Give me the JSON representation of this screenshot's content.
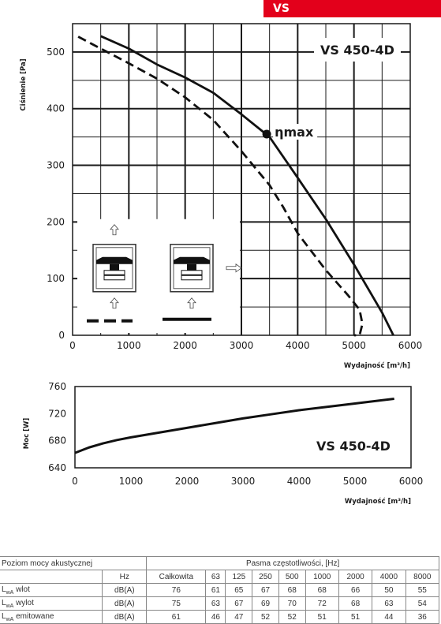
{
  "tag": "VS",
  "chart_data": [
    {
      "type": "line",
      "model": "VS 450-4D",
      "eta_label": "ηmax",
      "ylabel": "Ciśnienie [Pa]",
      "xlabel": "Wydajność [m³/h]",
      "xlim": [
        0,
        6000
      ],
      "ylim": [
        0,
        550
      ],
      "xticks": [
        0,
        1000,
        2000,
        3000,
        4000,
        5000,
        6000
      ],
      "yticks": [
        0,
        100,
        200,
        300,
        400,
        500
      ],
      "series": [
        {
          "style": "solid",
          "x": [
            500,
            1000,
            1500,
            2000,
            2500,
            3000,
            3500,
            4000,
            4500,
            5000,
            5500,
            5700
          ],
          "y": [
            528,
            506,
            478,
            455,
            428,
            390,
            350,
            278,
            205,
            125,
            40,
            0
          ]
        },
        {
          "style": "dashed",
          "x": [
            100,
            500,
            1000,
            1500,
            2000,
            2500,
            3000,
            3500,
            3750,
            4000,
            4500,
            4900,
            5100,
            5150,
            5100,
            5000
          ],
          "y": [
            527,
            506,
            480,
            453,
            420,
            380,
            325,
            265,
            225,
            180,
            115,
            70,
            45,
            20,
            0,
            0
          ]
        }
      ],
      "eta_point": {
        "x": 3450,
        "y": 355
      },
      "inset": {
        "left_caption": "",
        "right_caption": ""
      }
    },
    {
      "type": "line",
      "model": "VS 450-4D",
      "ylabel": "Moc [W]",
      "xlabel": "Wydajność [m³/h]",
      "xlim": [
        0,
        6000
      ],
      "ylim": [
        640,
        760
      ],
      "xticks": [
        0,
        1000,
        2000,
        3000,
        4000,
        5000,
        6000
      ],
      "yticks": [
        640,
        680,
        720,
        760
      ],
      "series": [
        {
          "style": "solid",
          "x": [
            0,
            250,
            500,
            750,
            1000,
            1500,
            2000,
            2500,
            3000,
            3500,
            4000,
            4500,
            5000,
            5700
          ],
          "y": [
            662,
            670,
            676,
            681,
            685,
            692,
            699,
            706,
            713,
            719,
            725,
            730,
            735,
            742
          ]
        }
      ]
    }
  ],
  "table": {
    "title": "Poziom mocy akustycznej",
    "band_header": "Pasma częstotliwości, [Hz]",
    "unit_header": "Hz",
    "columns": [
      "Całkowita",
      "63",
      "125",
      "250",
      "500",
      "1000",
      "2000",
      "4000",
      "8000"
    ],
    "rows": [
      {
        "label": "wlot",
        "unit": "dB(A)",
        "values": [
          "76",
          "61",
          "65",
          "67",
          "68",
          "68",
          "66",
          "50",
          "55"
        ]
      },
      {
        "label": "wylot",
        "unit": "dB(A)",
        "values": [
          "75",
          "63",
          "67",
          "69",
          "70",
          "72",
          "68",
          "63",
          "54"
        ]
      },
      {
        "label": "emitowane",
        "unit": "dB(A)",
        "values": [
          "61",
          "46",
          "47",
          "52",
          "52",
          "51",
          "51",
          "44",
          "36"
        ]
      }
    ]
  }
}
